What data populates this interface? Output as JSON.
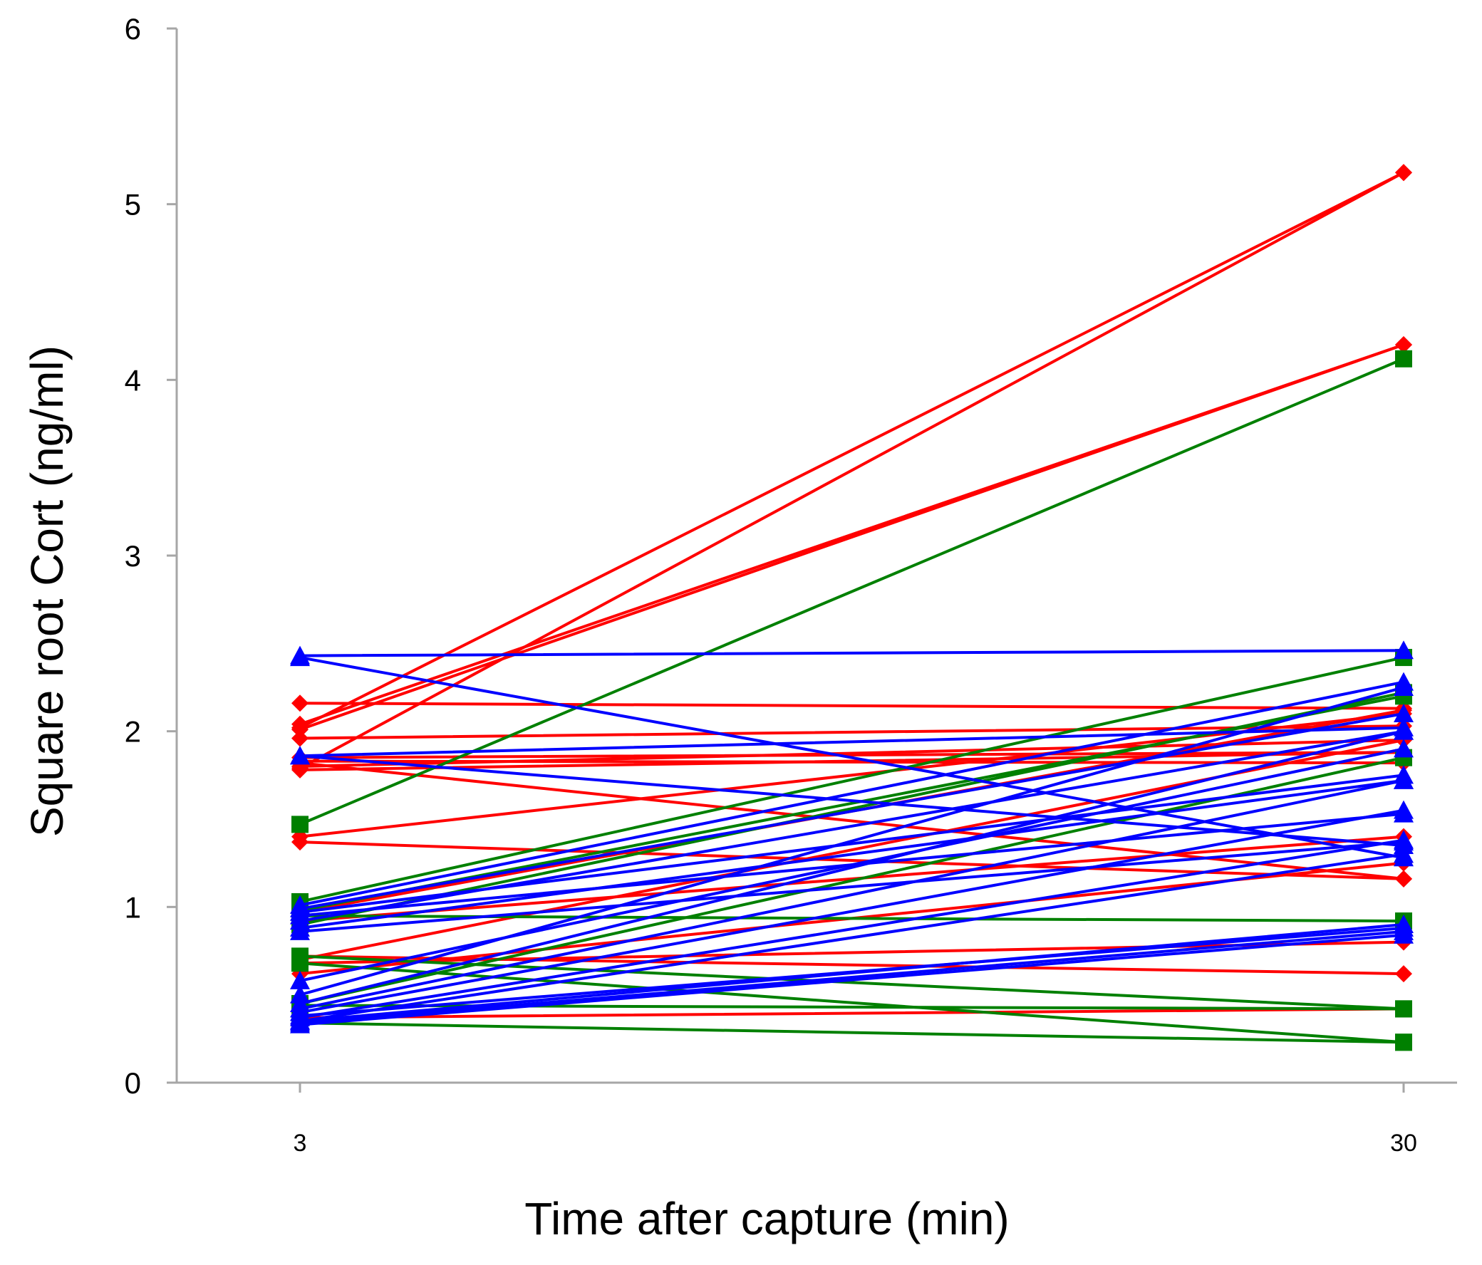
{
  "chart_data": {
    "type": "line",
    "xlabel": "Time after capture (min)",
    "ylabel": "Square root Cort (ng/ml)",
    "x": [
      3,
      30
    ],
    "x_tick_labels": [
      "3",
      "30"
    ],
    "ylim": [
      0,
      6
    ],
    "y_ticks": [
      "0",
      "1",
      "2",
      "3",
      "4",
      "5",
      "6"
    ],
    "grid": false,
    "legend": "none",
    "series": [
      {
        "group": "red",
        "color": "#ff0000",
        "marker": "diamond",
        "lines": [
          [
            2.02,
            5.18
          ],
          [
            1.79,
            5.18
          ],
          [
            2.04,
            4.2
          ],
          [
            2.01,
            4.2
          ],
          [
            2.16,
            2.13
          ],
          [
            1.96,
            2.03
          ],
          [
            1.85,
            1.88
          ],
          [
            1.83,
            1.82
          ],
          [
            1.8,
            1.95
          ],
          [
            1.78,
            1.88
          ],
          [
            1.37,
            1.16
          ],
          [
            1.82,
            1.16
          ],
          [
            1.4,
            2.1
          ],
          [
            0.97,
            2.12
          ],
          [
            0.72,
            0.62
          ],
          [
            0.68,
            0.8
          ],
          [
            0.62,
            1.25
          ],
          [
            0.7,
            1.95
          ],
          [
            0.92,
            1.4
          ],
          [
            0.37,
            0.42
          ]
        ]
      },
      {
        "group": "green",
        "color": "#008000",
        "marker": "square",
        "lines": [
          [
            1.47,
            4.12
          ],
          [
            1.03,
            2.42
          ],
          [
            0.98,
            2.2
          ],
          [
            0.95,
            0.92
          ],
          [
            0.9,
            2.22
          ],
          [
            0.72,
            0.42
          ],
          [
            0.68,
            0.23
          ],
          [
            0.44,
            0.42
          ],
          [
            0.34,
            0.23
          ],
          [
            0.45,
            1.85
          ]
        ]
      },
      {
        "group": "blue",
        "color": "#0000ff",
        "marker": "triangle",
        "lines": [
          [
            2.43,
            2.46
          ],
          [
            2.42,
            1.28
          ],
          [
            1.86,
            1.35
          ],
          [
            1.86,
            2.02
          ],
          [
            1.01,
            2.28
          ],
          [
            0.99,
            2.1
          ],
          [
            0.97,
            1.75
          ],
          [
            0.95,
            1.53
          ],
          [
            0.92,
            2.0
          ],
          [
            0.88,
            1.72
          ],
          [
            0.86,
            1.37
          ],
          [
            0.58,
            1.9
          ],
          [
            0.5,
            2.25
          ],
          [
            0.45,
            2.0
          ],
          [
            0.4,
            1.55
          ],
          [
            0.37,
            1.38
          ],
          [
            0.35,
            1.3
          ],
          [
            0.35,
            0.9
          ],
          [
            0.34,
            0.86
          ],
          [
            0.33,
            0.84
          ],
          [
            0.38,
            0.88
          ],
          [
            0.42,
            1.72
          ]
        ]
      }
    ]
  }
}
